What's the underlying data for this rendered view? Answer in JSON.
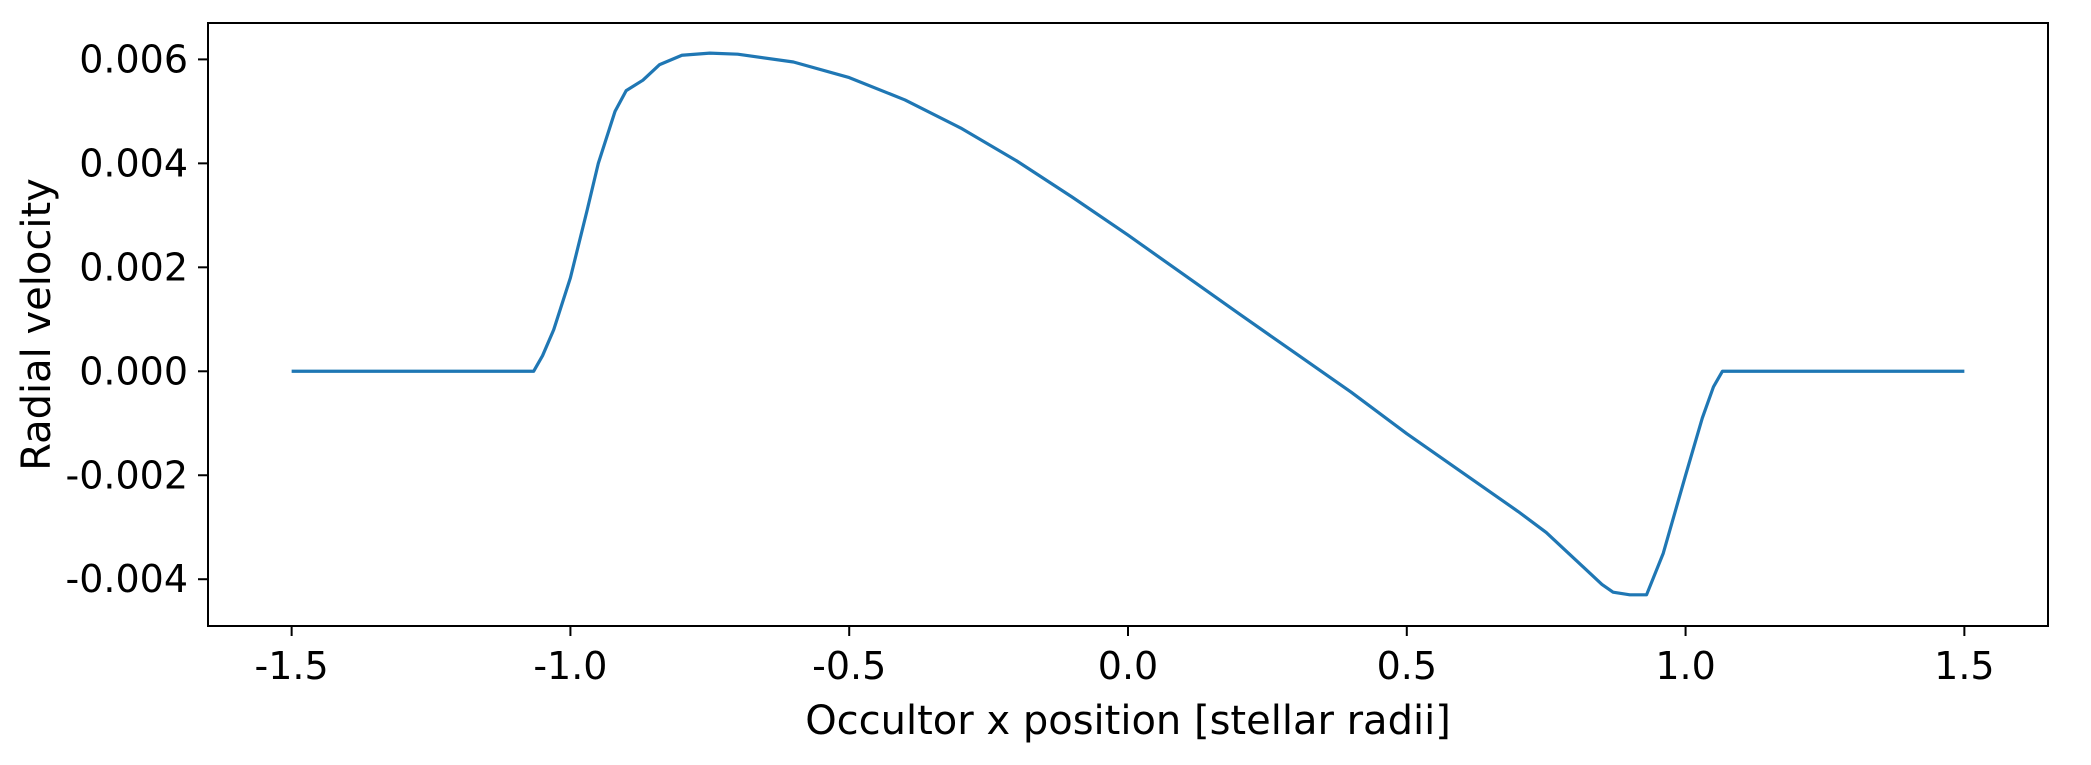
{
  "chart_data": {
    "type": "line",
    "xlabel": "Occultor x position [stellar radii]",
    "ylabel": "Radial velocity",
    "xlim": [
      -1.65,
      1.65
    ],
    "ylim": [
      -0.0049,
      0.0067
    ],
    "grid": false,
    "x_ticks": [
      {
        "value": -1.5,
        "label": "-1.5"
      },
      {
        "value": -1.0,
        "label": "-1.0"
      },
      {
        "value": -0.5,
        "label": "-0.5"
      },
      {
        "value": 0.0,
        "label": "0.0"
      },
      {
        "value": 0.5,
        "label": "0.5"
      },
      {
        "value": 1.0,
        "label": "1.0"
      },
      {
        "value": 1.5,
        "label": "1.5"
      }
    ],
    "y_ticks": [
      {
        "value": 0.006,
        "label": "0.006"
      },
      {
        "value": 0.004,
        "label": "0.004"
      },
      {
        "value": 0.002,
        "label": "0.002"
      },
      {
        "value": 0.0,
        "label": "0.000"
      },
      {
        "value": -0.002,
        "label": "-0.002"
      },
      {
        "value": -0.004,
        "label": "-0.004"
      }
    ],
    "series": [
      {
        "color": "#1f77b4",
        "x": [
          -1.5,
          -1.3,
          -1.1,
          -1.066,
          -1.05,
          -1.03,
          -1.0,
          -0.97,
          -0.95,
          -0.92,
          -0.9,
          -0.87,
          -0.84,
          -0.8,
          -0.75,
          -0.7,
          -0.6,
          -0.5,
          -0.4,
          -0.3,
          -0.2,
          -0.1,
          0.0,
          0.1,
          0.2,
          0.3,
          0.4,
          0.5,
          0.6,
          0.7,
          0.75,
          0.78,
          0.82,
          0.85,
          0.87,
          0.9,
          0.93,
          0.96,
          1.0,
          1.03,
          1.05,
          1.066,
          1.1,
          1.3,
          1.5
        ],
        "y": [
          0.0,
          0.0,
          0.0,
          0.0,
          0.0003,
          0.0008,
          0.0018,
          0.0031,
          0.004,
          0.005,
          0.0054,
          0.0056,
          0.0059,
          0.00608,
          0.00612,
          0.0061,
          0.00595,
          0.00565,
          0.00522,
          0.00468,
          0.00405,
          0.00335,
          0.00262,
          0.00186,
          0.0011,
          0.00035,
          -0.0004,
          -0.0012,
          -0.00195,
          -0.0027,
          -0.0031,
          -0.0034,
          -0.0038,
          -0.0041,
          -0.00425,
          -0.0043,
          -0.0043,
          -0.0035,
          -0.002,
          -0.0009,
          -0.0003,
          0.0,
          0.0,
          0.0,
          0.0
        ]
      }
    ]
  }
}
